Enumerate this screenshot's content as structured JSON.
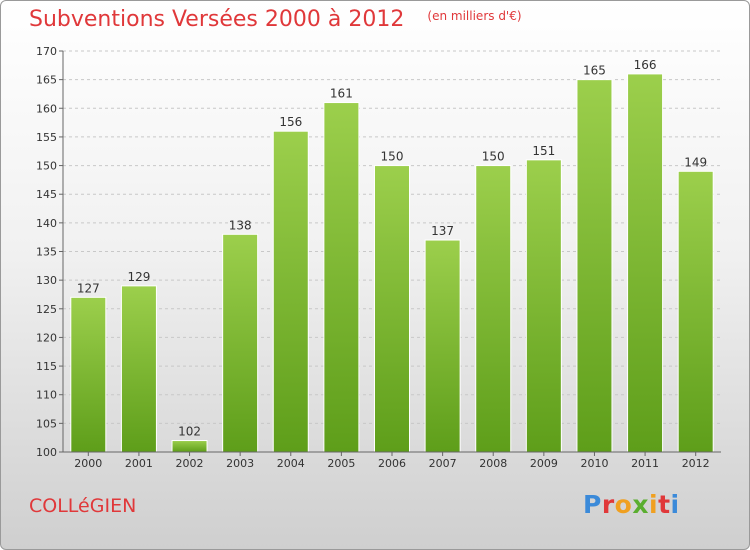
{
  "header": {
    "title": "Subventions Versées 2000 à 2012",
    "unit": "(en milliers d'€)"
  },
  "footer": {
    "commune": "COLLéGIEN",
    "brand": "Proxiti",
    "brand_colors": [
      "#3b8ad9",
      "#e0383a",
      "#f0a020",
      "#5aae2f",
      "#f0a020",
      "#e0383a",
      "#3b8ad9"
    ]
  },
  "chart_data": {
    "type": "bar",
    "categories": [
      "2000",
      "2001",
      "2002",
      "2003",
      "2004",
      "2005",
      "2006",
      "2007",
      "2008",
      "2009",
      "2010",
      "2011",
      "2012"
    ],
    "values": [
      127,
      129,
      102,
      138,
      156,
      161,
      150,
      137,
      150,
      151,
      165,
      166,
      149
    ],
    "yticks": [
      "100",
      "105",
      "110",
      "115",
      "120",
      "125",
      "130",
      "135",
      "140",
      "145",
      "150",
      "155",
      "160",
      "165",
      "170"
    ],
    "title": "Subventions Versées 2000 à 2012",
    "xlabel": "",
    "ylabel": "",
    "ylim": [
      100,
      170
    ],
    "grid": true,
    "bar_color_top": "#9ccf4c",
    "bar_color_bottom": "#5e9e1a"
  }
}
